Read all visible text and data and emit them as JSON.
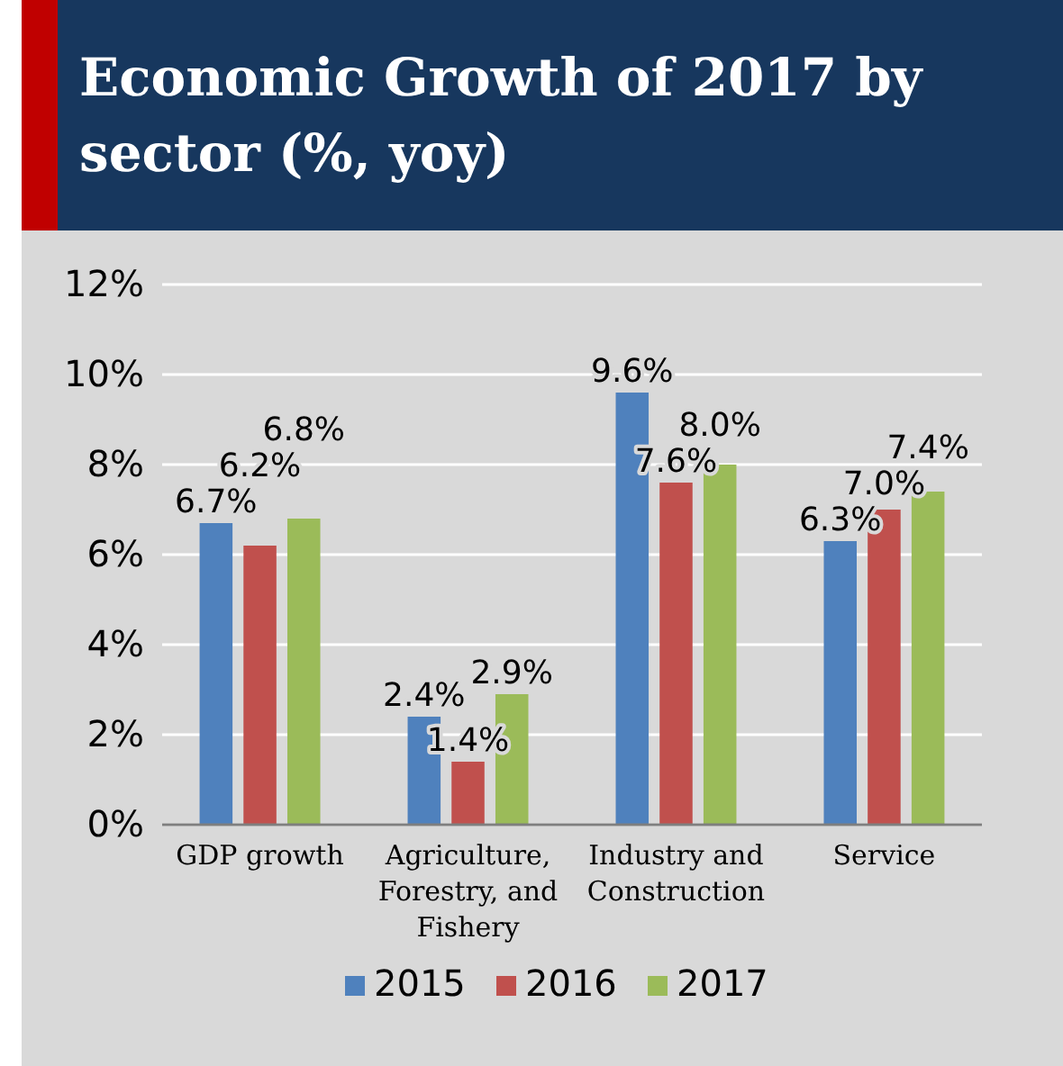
{
  "chart_data": {
    "type": "bar",
    "title": "Economic Growth of 2017 by sector (%, yoy)",
    "categories": [
      "GDP growth",
      "Agriculture, Forestry, and Fishery",
      "Industry and Construction",
      "Service"
    ],
    "series": [
      {
        "name": "2015",
        "color": "#4f81bd",
        "values": [
          6.7,
          2.4,
          9.6,
          6.3
        ],
        "value_labels": [
          "6.7%",
          "2.4%",
          "9.6%",
          "6.3%"
        ]
      },
      {
        "name": "2016",
        "color": "#c0504d",
        "values": [
          6.2,
          1.4,
          7.6,
          7.0
        ],
        "value_labels": [
          "6.2%",
          "1.4%",
          "7.6%",
          "7.0%"
        ]
      },
      {
        "name": "2017",
        "color": "#9bbb59",
        "values": [
          6.8,
          2.9,
          8.0,
          7.4
        ],
        "value_labels": [
          "6.8%",
          "2.9%",
          "8.0%",
          "7.4%"
        ]
      }
    ],
    "ylim": [
      0,
      12
    ],
    "yticks": [
      {
        "value": 0,
        "label": "0%"
      },
      {
        "value": 2,
        "label": "2%"
      },
      {
        "value": 4,
        "label": "4%"
      },
      {
        "value": 6,
        "label": "6%"
      },
      {
        "value": 8,
        "label": "8%"
      },
      {
        "value": 10,
        "label": "10%"
      },
      {
        "value": 12,
        "label": "12%"
      }
    ],
    "grid": "y",
    "legend": "bottom"
  }
}
